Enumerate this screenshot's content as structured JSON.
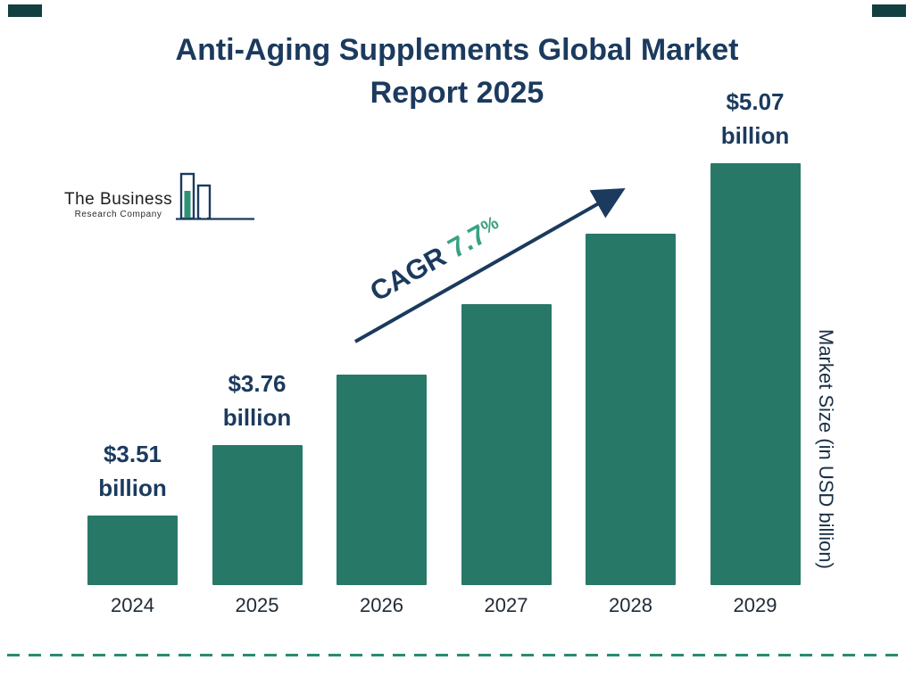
{
  "page": {
    "title_line1": "Anti-Aging Supplements Global Market",
    "title_line2": "Report 2025"
  },
  "logo": {
    "line1": "The Business",
    "line2": "Research Company"
  },
  "cagr": {
    "label": "CAGR",
    "value": "7.7",
    "percent_sign": "%"
  },
  "chart_data": {
    "type": "bar",
    "title": "Anti-Aging Supplements Global Market Report 2025",
    "categories": [
      "2024",
      "2025",
      "2026",
      "2027",
      "2028",
      "2029"
    ],
    "values": [
      3.51,
      3.76,
      4.05,
      4.36,
      4.7,
      5.07
    ],
    "unit": "USD billion",
    "value_labels": {
      "0": [
        "$3.51",
        "billion"
      ],
      "1": [
        "$3.76",
        "billion"
      ],
      "5": [
        "$5.07",
        "billion"
      ]
    },
    "cagr": "7.7%",
    "ylabel": "Market Size (in USD billion)",
    "xlabel": "",
    "legend": false,
    "grid": false,
    "baseline_note": "bars drawn with non-zero baseline",
    "bar_color": "#287868"
  },
  "colors": {
    "navy": "#1b3a5e",
    "bar_teal": "#287868",
    "accent_green": "#3aa183",
    "dashed_line": "#2a8a72",
    "corner_rect": "#123f3f"
  }
}
